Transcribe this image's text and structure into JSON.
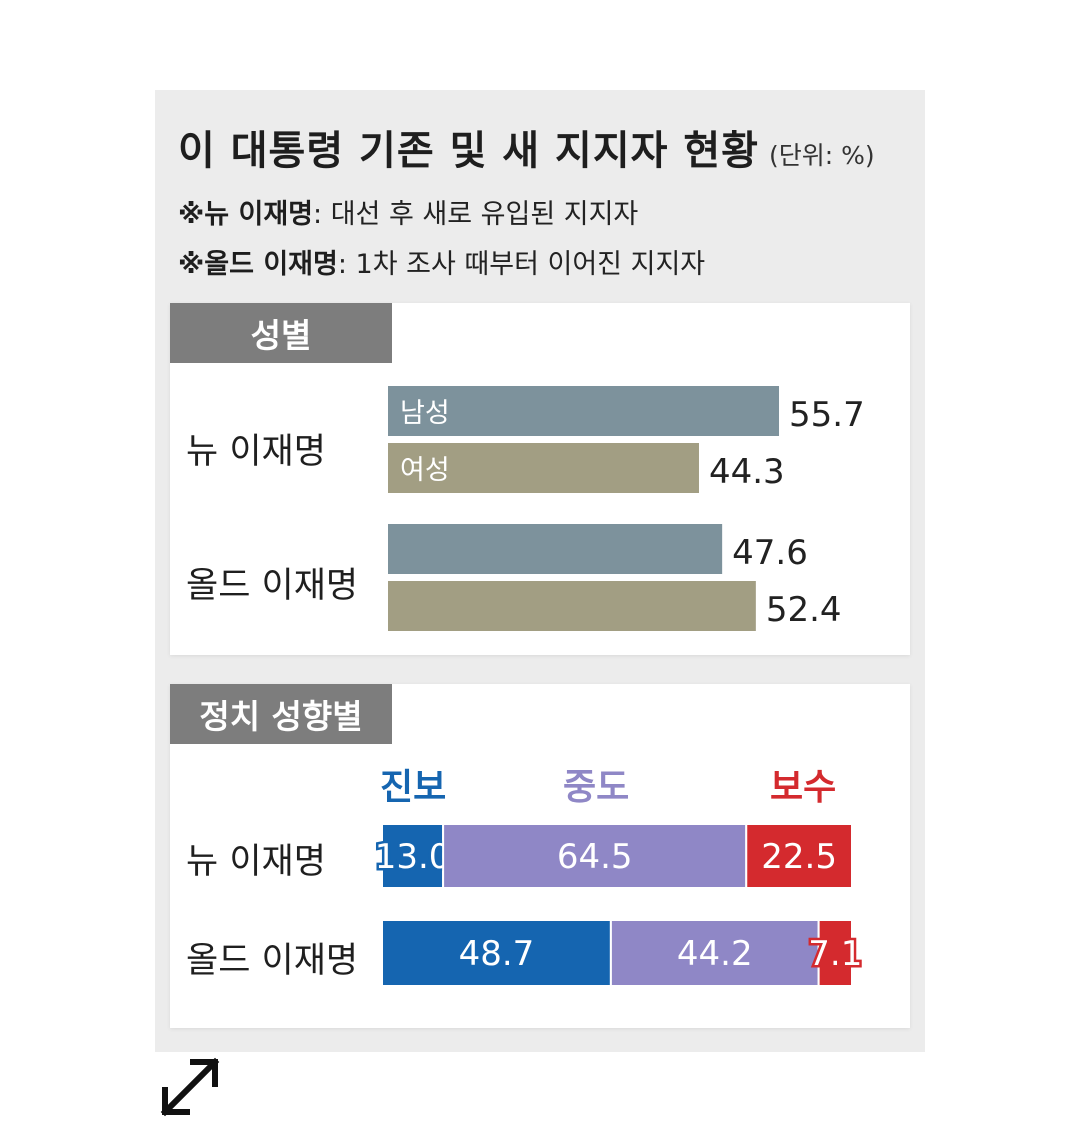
{
  "title": "이 대통령 기존 및 새 지지자 현황",
  "unit": "(단위: %)",
  "notes": [
    {
      "term": "※뉴 이재명",
      "text": ": 대선 후 새로 유입된 지지자"
    },
    {
      "term": "※올드 이재명",
      "text": ": 1차 조사 때부터 이어진 지지자"
    }
  ],
  "colors": {
    "male": "#7d929c",
    "female": "#a29e83",
    "progressive": "#1565b0",
    "moderate": "#8f87c6",
    "conservative": "#d42a2e"
  },
  "chart_data": [
    {
      "type": "bar",
      "section": "성별",
      "categories": [
        "뉴 이재명",
        "올드 이재명"
      ],
      "series": [
        {
          "name": "남성",
          "values": [
            55.7,
            47.6
          ]
        },
        {
          "name": "여성",
          "values": [
            44.3,
            52.4
          ]
        }
      ],
      "value_labels": [
        [
          "55.7",
          "44.3"
        ],
        [
          "47.6",
          "52.4"
        ]
      ],
      "xlim": [
        0,
        70
      ]
    },
    {
      "type": "bar",
      "stacked": true,
      "section": "정치 성향별",
      "categories": [
        "뉴 이재명",
        "올드 이재명"
      ],
      "series": [
        {
          "name": "진보",
          "values": [
            13.0,
            48.7
          ]
        },
        {
          "name": "중도",
          "values": [
            64.5,
            44.2
          ]
        },
        {
          "name": "보수",
          "values": [
            22.5,
            7.1
          ]
        }
      ],
      "value_labels": [
        [
          "13.0",
          "64.5",
          "22.5"
        ],
        [
          "48.7",
          "44.2",
          "7.1"
        ]
      ],
      "xlim": [
        0,
        100
      ]
    }
  ]
}
